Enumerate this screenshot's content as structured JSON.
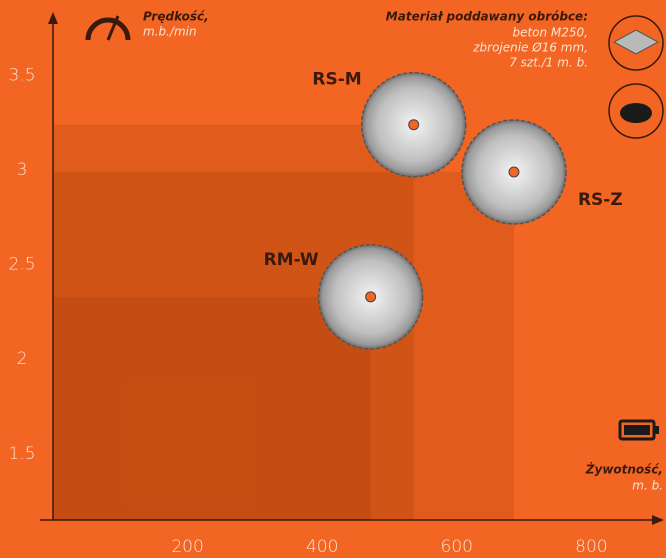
{
  "chart_data": {
    "type": "scatter",
    "y_label": "Prędkość,",
    "y_unit": "m.b./min",
    "x_label": "Żywotność,",
    "x_unit": "m. b.",
    "material": {
      "title": "Materiał poddawany obróbce:",
      "lines": [
        "beton M250,",
        "zbrojenie Ø16 mm,",
        "7 szt./1 m. b."
      ]
    },
    "point_labels": [
      "RS-M",
      "RS-Z",
      "RM-W"
    ],
    "x": [
      536,
      685,
      472
    ],
    "values": [
      3.24,
      2.99,
      2.33
    ],
    "color": "#8a3000",
    "xlim": [
      0,
      902
    ],
    "xticks": [
      200,
      400,
      600,
      800
    ],
    "ylim": [
      1.15,
      3.82
    ],
    "yticks": [
      1.5,
      2,
      2.5,
      3,
      3.5
    ]
  }
}
